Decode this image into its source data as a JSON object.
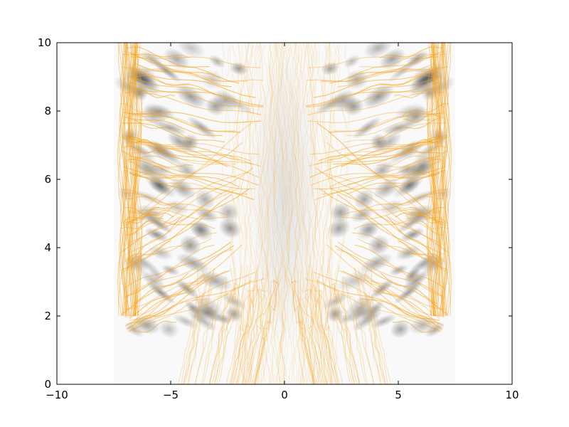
{
  "chart_data": {
    "type": "heatmap",
    "title": "",
    "xlabel": "",
    "ylabel": "",
    "xlim": [
      -10,
      10
    ],
    "ylim": [
      0,
      10
    ],
    "x_ticks": [
      -10,
      -5,
      0,
      5,
      10
    ],
    "y_ticks": [
      0,
      2,
      4,
      6,
      8,
      10
    ],
    "x_tick_labels": [
      "−10",
      "−5",
      "0",
      "5",
      "10"
    ],
    "y_tick_labels": [
      "0",
      "2",
      "4",
      "6",
      "8",
      "10"
    ],
    "grid": false,
    "legend": "none",
    "symmetry": "mirror about x = 0",
    "density_extent": {
      "x": [
        -7.5,
        7.5
      ],
      "y": [
        0,
        10
      ]
    },
    "overlay_color": "#f5a623",
    "density_color": "#000000",
    "layers": [
      {
        "kind": "density",
        "description": "grayscale histogram of trajectory density"
      },
      {
        "kind": "trajectories",
        "description": "many semi-transparent orange paths"
      }
    ]
  }
}
